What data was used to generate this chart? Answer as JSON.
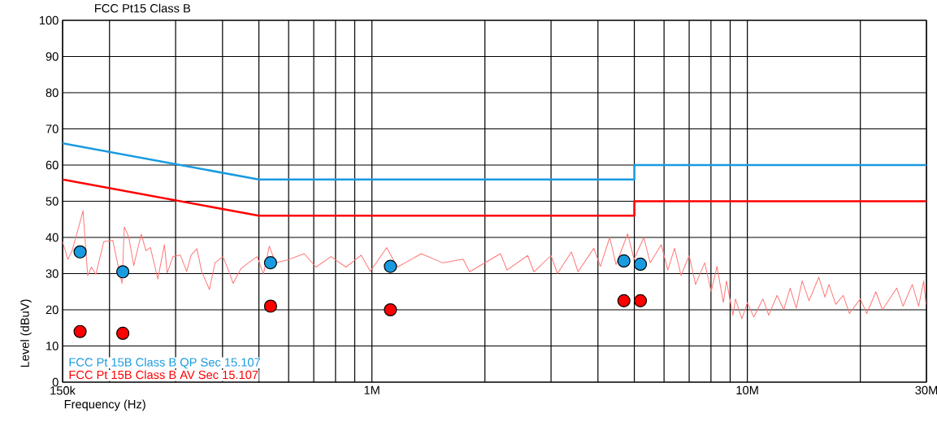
{
  "chart_data": {
    "type": "line",
    "title": "FCC Pt15 Class B",
    "xlabel": "Frequency (Hz)",
    "ylabel": "Level (dBuV)",
    "log": "x",
    "grid": true,
    "legend": "bottom left",
    "xlim": [
      150000,
      30000000
    ],
    "ylim": [
      0,
      100
    ],
    "xticks": [
      {
        "value": 150000,
        "label": "150k"
      },
      {
        "value": 1000000,
        "label": "1M"
      },
      {
        "value": 10000000,
        "label": "10M"
      },
      {
        "value": 30000000,
        "label": "30M"
      }
    ],
    "yticks": [
      0,
      10,
      20,
      30,
      40,
      50,
      60,
      70,
      80,
      90,
      100
    ],
    "series": [
      {
        "name": "FCC Pt 15B Class B QP Sec 15.107",
        "color": "#1a9be0",
        "x": [
          150000,
          500000,
          5000000,
          5000000,
          30000000
        ],
        "values": [
          66,
          56,
          56,
          60,
          60
        ]
      },
      {
        "name": "FCC Pt 15B Class B AV Sec 15.107",
        "color": "#ff0000",
        "x": [
          150000,
          500000,
          5000000,
          5000000,
          30000000
        ],
        "values": [
          56,
          46,
          46,
          50,
          50
        ]
      },
      {
        "type": "line",
        "color": "#ff7777",
        "x": [
          150000,
          155000,
          159000,
          166000,
          170000,
          175000,
          179000,
          184000,
          193000,
          204000,
          210000,
          216000,
          219000,
          225000,
          232000,
          243000,
          250000,
          257000,
          269000,
          280000,
          285000,
          295000,
          309000,
          321000,
          330000,
          342000,
          352000,
          369000,
          382000,
          401000,
          416000,
          427000,
          448000,
          469000,
          495000,
          514000,
          533000,
          553000,
          601000,
          660000,
          710000,
          778000,
          853000,
          936000,
          990000,
          1095000,
          1169000,
          1354000,
          1540000,
          1750000,
          1820000,
          2200000,
          2290000,
          2600000,
          2700000,
          3000000,
          3120000,
          3400000,
          3540000,
          3900000,
          4060000,
          4300000,
          4470000,
          4800000,
          4990000,
          5300000,
          5510000,
          5900000,
          6140000,
          6400000,
          6660000,
          7000000,
          7280000,
          7700000,
          8010000,
          8300000,
          8630000,
          8800000,
          9150000,
          9300000,
          9670000,
          10000000,
          10400000,
          11000000,
          11400000,
          12000000,
          12500000,
          13000000,
          13500000,
          14000000,
          14600000,
          15500000,
          16100000,
          16500000,
          17200000,
          18000000,
          18700000,
          20000000,
          20800000,
          22000000,
          22900000,
          25000000,
          26000000,
          27500000,
          28600000,
          29500000,
          29900000
        ],
        "values": [
          38.8,
          33.9,
          36.3,
          43.3,
          47.4,
          29.4,
          31.8,
          29.8,
          38.8,
          39.2,
          33.0,
          27.3,
          42.9,
          40.2,
          32.2,
          40.9,
          36.3,
          37.2,
          28.5,
          38.0,
          30.2,
          34.7,
          35.1,
          30.6,
          35.1,
          36.9,
          30.6,
          25.6,
          33.0,
          34.7,
          30.6,
          27.3,
          31.4,
          33.0,
          34.7,
          29.8,
          37.6,
          33.0,
          33.9,
          35.5,
          31.8,
          34.7,
          31.8,
          35.1,
          30.6,
          37.2,
          31.8,
          35.5,
          33.0,
          34,
          30.5,
          35.5,
          31,
          35,
          30.5,
          35,
          30,
          36,
          30.5,
          37,
          32,
          40,
          32.5,
          41,
          34,
          40,
          33,
          38,
          31,
          37,
          29.5,
          35,
          27,
          33,
          25,
          32,
          22,
          28,
          18.5,
          23,
          17.5,
          22,
          18,
          23,
          18.5,
          24,
          20,
          26,
          20.5,
          28,
          22.5,
          29,
          23.5,
          27,
          21.5,
          24,
          19,
          23,
          19,
          25,
          20,
          26,
          21,
          27,
          21,
          28,
          21.5
        ]
      },
      {
        "type": "scatter",
        "color": "#1a9be0",
        "x": [
          167000,
          217000,
          537000,
          1120000,
          4690000,
          5190000
        ],
        "values": [
          36,
          30.5,
          33,
          32,
          33.5,
          32.6
        ]
      },
      {
        "type": "scatter",
        "color": "#ff0000",
        "x": [
          167000,
          217000,
          537000,
          1120000,
          4690000,
          5190000
        ],
        "values": [
          14,
          13.5,
          21,
          20,
          22.5,
          22.5
        ]
      }
    ]
  }
}
